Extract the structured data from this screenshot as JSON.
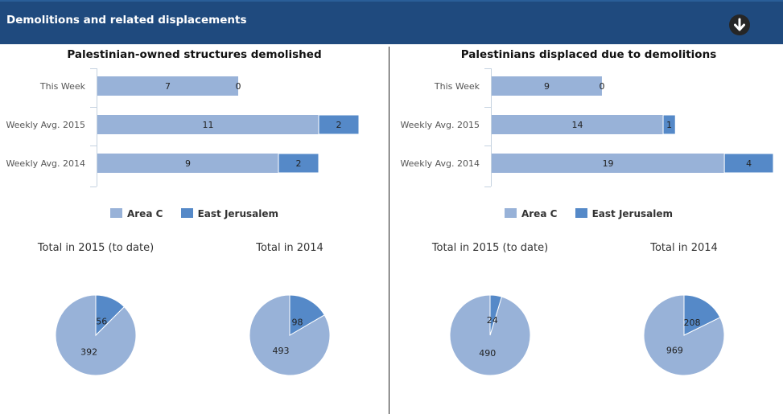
{
  "header": {
    "title": "Demolitions and related displacements",
    "collapse_icon": "arrow-down-circle-icon"
  },
  "colors": {
    "header_bg": "#1f4a7e",
    "area_c": "#98b2d8",
    "east_jerusalem": "#5589c8"
  },
  "legend": {
    "area_c": "Area C",
    "east_jerusalem": "East Jerusalem"
  },
  "chart_data": [
    {
      "type": "bar",
      "orientation": "horizontal-stacked",
      "title": "Palestinian-owned structures demolished",
      "categories": [
        "This Week",
        "Weekly Avg. 2015",
        "Weekly Avg. 2014"
      ],
      "series": [
        {
          "name": "Area C",
          "values": [
            7,
            11,
            9
          ]
        },
        {
          "name": "East Jerusalem",
          "values": [
            0,
            2,
            2
          ]
        }
      ],
      "xlim": [
        0,
        14
      ],
      "legend_position": "bottom"
    },
    {
      "type": "bar",
      "orientation": "horizontal-stacked",
      "title": "Palestinians displaced due to demolitions",
      "categories": [
        "This Week",
        "Weekly Avg. 2015",
        "Weekly Avg. 2014"
      ],
      "series": [
        {
          "name": "Area C",
          "values": [
            9,
            14,
            19
          ]
        },
        {
          "name": "East Jerusalem",
          "values": [
            0,
            1,
            4
          ]
        }
      ],
      "xlim": [
        0,
        23
      ],
      "legend_position": "bottom"
    },
    {
      "type": "pie",
      "title": "Total in 2015 (to date)",
      "labels": [
        "Area C",
        "East Jerusalem"
      ],
      "values": [
        392,
        56
      ]
    },
    {
      "type": "pie",
      "title": "Total in 2014",
      "labels": [
        "Area C",
        "East Jerusalem"
      ],
      "values": [
        493,
        98
      ]
    },
    {
      "type": "pie",
      "title": "Total in 2015 (to date)",
      "labels": [
        "Area C",
        "East Jerusalem"
      ],
      "values": [
        490,
        24
      ]
    },
    {
      "type": "pie",
      "title": "Total in 2014",
      "labels": [
        "Area C",
        "East Jerusalem"
      ],
      "values": [
        969,
        208
      ]
    }
  ]
}
